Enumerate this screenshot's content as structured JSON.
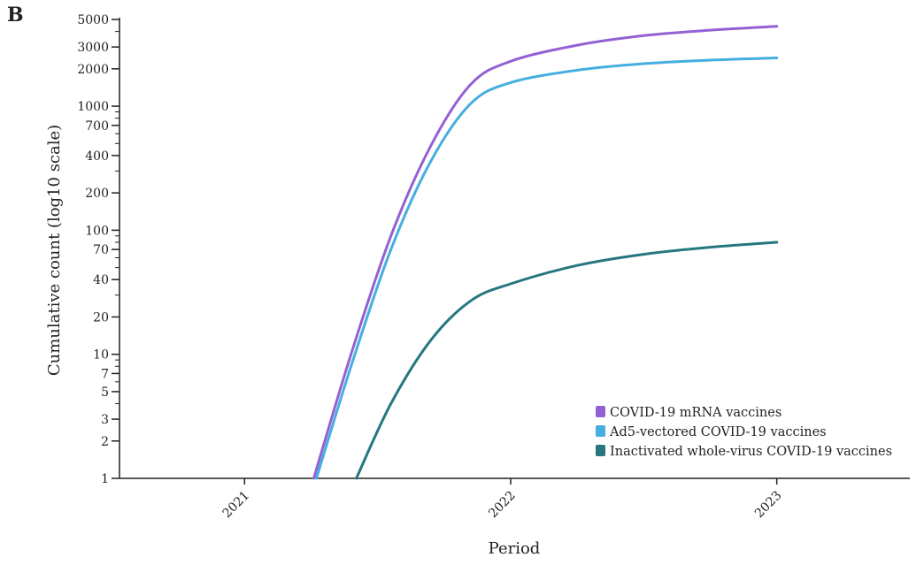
{
  "panel_label": "B",
  "chart_data": {
    "type": "line",
    "title": "",
    "xlabel": "Period",
    "ylabel": "Cumulative count (log10 scale)",
    "yscale": "log10",
    "xlim": [
      2020.53,
      2023.5
    ],
    "ylim": [
      1,
      5000
    ],
    "x_ticks": [
      2021,
      2022,
      2023
    ],
    "x_tick_labels": [
      "2021",
      "2022",
      "2023"
    ],
    "y_ticks": [
      1,
      2,
      3,
      5,
      7,
      10,
      20,
      40,
      70,
      100,
      200,
      400,
      700,
      1000,
      2000,
      3000,
      5000
    ],
    "y_tick_labels": [
      "1",
      "2",
      "3",
      "5",
      "7",
      "10",
      "20",
      "40",
      "70",
      "100",
      "200",
      "400",
      "700",
      "1000",
      "2000",
      "3000",
      "5000"
    ],
    "grid": false,
    "legend_position": "bottom-right",
    "series": [
      {
        "name": "COVID-19 mRNA vaccines",
        "color": "#9461D4",
        "x": [
          2021.26,
          2021.4,
          2021.55,
          2021.7,
          2021.85,
          2022.0,
          2022.25,
          2022.5,
          2022.75,
          2023.0
        ],
        "y": [
          1,
          10,
          90,
          480,
          1500,
          2300,
          3100,
          3700,
          4100,
          4400
        ]
      },
      {
        "name": "Ad5-vectored COVID-19 vaccines",
        "color": "#45AFE0",
        "x": [
          2021.27,
          2021.4,
          2021.55,
          2021.7,
          2021.85,
          2022.0,
          2022.25,
          2022.5,
          2022.75,
          2023.0
        ],
        "y": [
          1,
          8,
          70,
          360,
          1050,
          1550,
          1950,
          2200,
          2350,
          2450
        ]
      },
      {
        "name": "Inactivated whole-virus COVID-19 vaccines",
        "color": "#26777F",
        "x": [
          2021.42,
          2021.55,
          2021.7,
          2021.85,
          2022.0,
          2022.25,
          2022.5,
          2022.75,
          2023.0
        ],
        "y": [
          1,
          4,
          13,
          27,
          37,
          52,
          64,
          73,
          80
        ]
      }
    ]
  }
}
